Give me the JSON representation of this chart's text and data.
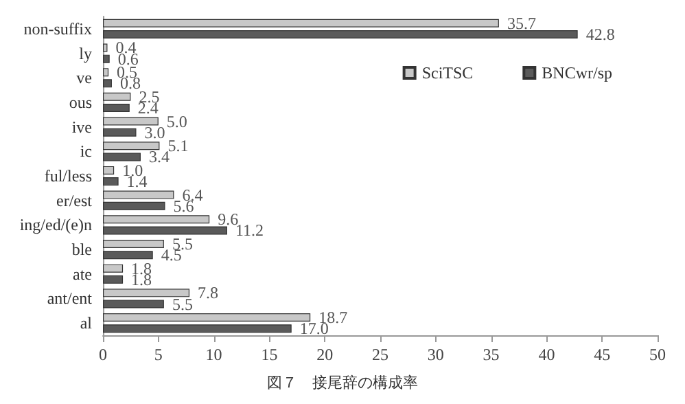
{
  "chart_data": {
    "type": "bar",
    "orientation": "horizontal",
    "categories": [
      "non-suffix",
      "ly",
      "ve",
      "ous",
      "ive",
      "ic",
      "ful/less",
      "er/est",
      "ing/ed/(e)n",
      "ble",
      "ate",
      "ant/ent",
      "al"
    ],
    "series": [
      {
        "name": "SciTSC",
        "color": "#c8c8c8",
        "values": [
          35.7,
          0.4,
          0.5,
          2.5,
          5.0,
          5.1,
          1.0,
          6.4,
          9.6,
          5.5,
          1.8,
          7.8,
          18.7
        ],
        "value_labels": [
          "35.7",
          "0.4",
          "0.5",
          "2.5",
          "5.0",
          "5.1",
          "1.0",
          "6.4",
          "9.6",
          "5.5",
          "1.8",
          "7.8",
          "18.7"
        ]
      },
      {
        "name": "BNCwr/sp",
        "color": "#5a5a5a",
        "values": [
          42.8,
          0.6,
          0.8,
          2.4,
          3.0,
          3.4,
          1.4,
          5.6,
          11.2,
          4.5,
          1.8,
          5.5,
          17.0
        ],
        "value_labels": [
          "42.8",
          "0.6",
          "0.8",
          "2.4",
          "3.0",
          "3.4",
          "1.4",
          "5.6",
          "11.2",
          "4.5",
          "1.8",
          "5.5",
          "17.0"
        ]
      }
    ],
    "xlim": [
      0,
      50
    ],
    "xticks": [
      0,
      5,
      10,
      15,
      20,
      25,
      30,
      35,
      40,
      45,
      50
    ],
    "grid": false,
    "legend": "top right",
    "annotations": [
      "図７　接尾辞の構成率"
    ]
  }
}
